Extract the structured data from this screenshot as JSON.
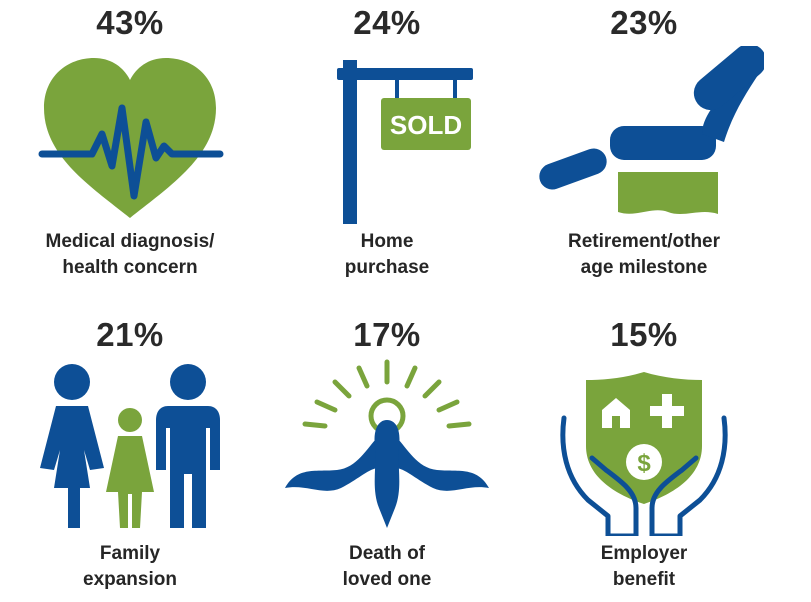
{
  "colors": {
    "blue": "#0d4f96",
    "green": "#7aa43c",
    "text": "#262626"
  },
  "chart_data": {
    "type": "icon-infographic",
    "categories": [
      "Medical diagnosis/ health concern",
      "Home purchase",
      "Retirement/other age milestone",
      "Family expansion",
      "Death of loved one",
      "Employer benefit"
    ],
    "values": [
      43,
      24,
      23,
      21,
      17,
      15
    ],
    "unit": "%",
    "items": [
      {
        "pct": "43%",
        "label_lines": [
          "Medical diagnosis/",
          "health concern"
        ],
        "icon": "heart-heartbeat-icon"
      },
      {
        "pct": "24%",
        "label_lines": [
          "Home",
          "purchase"
        ],
        "icon": "sold-sign-icon",
        "sign_text": "SOLD"
      },
      {
        "pct": "23%",
        "label_lines": [
          "Retirement/other",
          "age milestone"
        ],
        "icon": "recliner-chair-icon"
      },
      {
        "pct": "21%",
        "label_lines": [
          "Family",
          "expansion"
        ],
        "icon": "family-icon"
      },
      {
        "pct": "17%",
        "label_lines": [
          "Death of",
          "loved one"
        ],
        "icon": "dove-halo-icon"
      },
      {
        "pct": "15%",
        "label_lines": [
          "Employer",
          "benefit"
        ],
        "icon": "hands-shield-icon"
      }
    ]
  }
}
